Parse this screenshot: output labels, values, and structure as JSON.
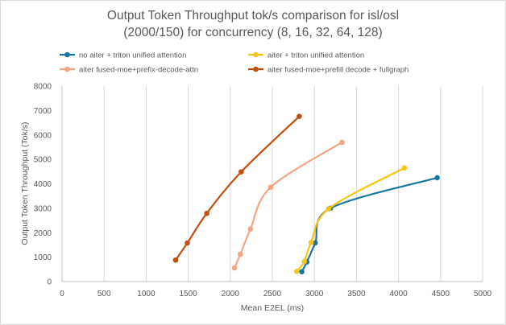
{
  "chart_data": {
    "type": "line",
    "title_lines": [
      "Output Token Throughput tok/s comparison for isl/osl",
      "(2000/150) for concurrency (8, 16, 32, 64, 128)"
    ],
    "xlabel": "Mean E2EL (ms)",
    "ylabel": "Output Token Throughput (Tok/s)",
    "xlim": [
      0,
      5000
    ],
    "ylim": [
      0,
      8000
    ],
    "xticks": [
      0,
      500,
      1000,
      1500,
      2000,
      2500,
      3000,
      3500,
      4000,
      4500,
      5000
    ],
    "yticks": [
      0,
      1000,
      2000,
      3000,
      4000,
      5000,
      6000,
      7000,
      8000
    ],
    "grid": "vertical",
    "legend_position": "top",
    "series": [
      {
        "name": "no aiter + triton unified attention",
        "color": "#1a759f",
        "points": [
          [
            2850,
            400
          ],
          [
            2910,
            800
          ],
          [
            3010,
            1580
          ],
          [
            3190,
            3000
          ],
          [
            4460,
            4250
          ]
        ]
      },
      {
        "name": "aiter + triton unified attention",
        "color": "#f5c518",
        "points": [
          [
            2790,
            420
          ],
          [
            2880,
            820
          ],
          [
            2960,
            1600
          ],
          [
            3170,
            2980
          ],
          [
            4070,
            4650
          ]
        ]
      },
      {
        "name": "aiter fused-moe+prefix-decode-attn",
        "color": "#f4a582",
        "points": [
          [
            2050,
            560
          ],
          [
            2120,
            1120
          ],
          [
            2240,
            2150
          ],
          [
            2480,
            3860
          ],
          [
            3330,
            5700
          ]
        ]
      },
      {
        "name": "aiter fused-moe+prefill decode + fullgraph",
        "color": "#c0500e",
        "points": [
          [
            1350,
            880
          ],
          [
            1490,
            1580
          ],
          [
            1720,
            2790
          ],
          [
            2130,
            4490
          ],
          [
            2820,
            6760
          ]
        ]
      }
    ]
  }
}
